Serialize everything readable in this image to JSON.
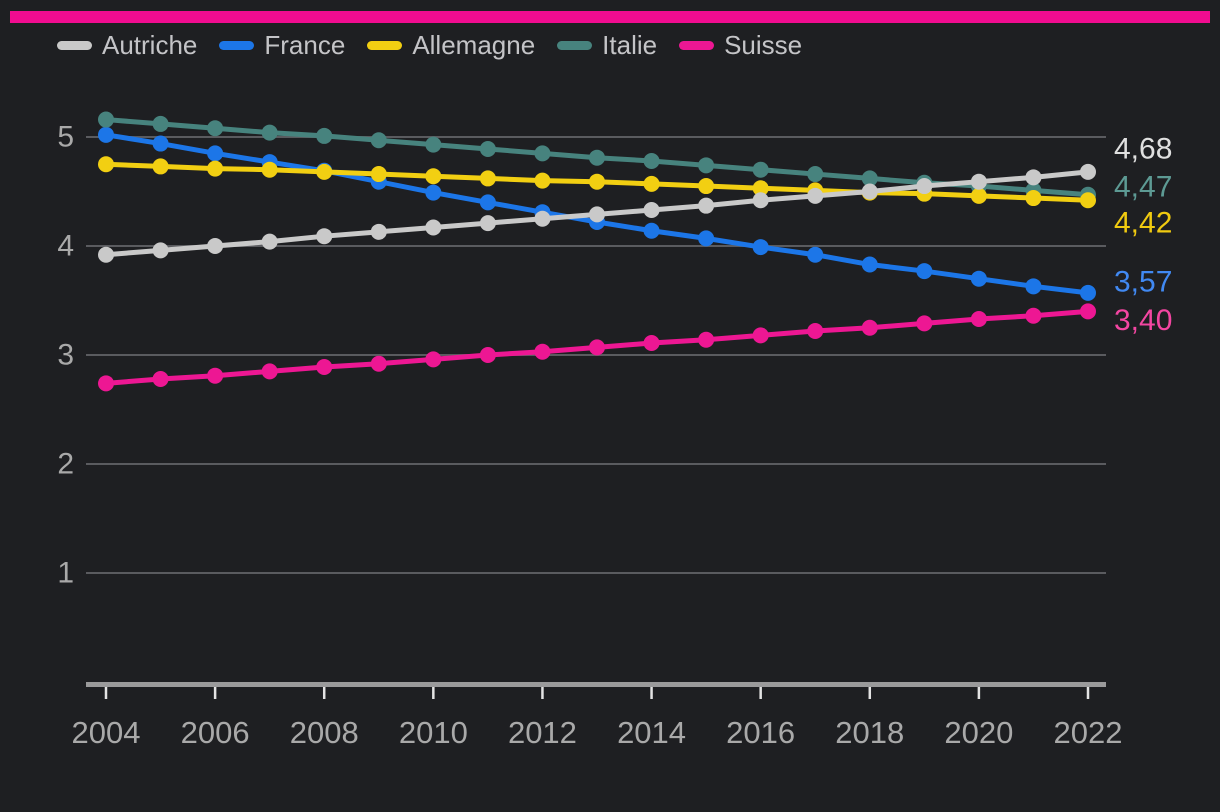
{
  "page": {
    "background": "#1e1f22"
  },
  "top_bar": {
    "color": "#f10c90"
  },
  "legend": {
    "text_color": "#c4c4c7"
  },
  "chart_data": {
    "type": "line",
    "title": "",
    "x": [
      2004,
      2005,
      2006,
      2007,
      2008,
      2009,
      2010,
      2011,
      2012,
      2013,
      2014,
      2015,
      2016,
      2017,
      2018,
      2019,
      2020,
      2021,
      2022
    ],
    "x_tick_labels": [
      "2004",
      "2006",
      "2008",
      "2010",
      "2012",
      "2014",
      "2016",
      "2018",
      "2020",
      "2022"
    ],
    "yticks": [
      1,
      2,
      3,
      4,
      5
    ],
    "ylim": [
      0,
      5.4
    ],
    "grid": true,
    "legend_position": "top-left",
    "decimal_separator": ",",
    "axis_colors": {
      "gridline": "#5a5b5f",
      "axis_line": "#9a9a9b",
      "tick": "#e3e3e3",
      "tick_label": "#a9a9a9"
    },
    "series": [
      {
        "name": "Autriche",
        "color": "#c9c9c9",
        "end_label": "4,68",
        "end_label_color": "#e0e0e0",
        "values": [
          3.92,
          3.96,
          4.0,
          4.04,
          4.09,
          4.13,
          4.17,
          4.21,
          4.25,
          4.29,
          4.33,
          4.37,
          4.42,
          4.46,
          4.5,
          4.55,
          4.59,
          4.63,
          4.68
        ]
      },
      {
        "name": "France",
        "color": "#1c76e8",
        "end_label": "3,57",
        "end_label_color": "#4189f2",
        "values": [
          5.02,
          4.94,
          4.85,
          4.77,
          4.69,
          4.59,
          4.49,
          4.4,
          4.31,
          4.22,
          4.14,
          4.07,
          3.99,
          3.92,
          3.83,
          3.77,
          3.7,
          3.63,
          3.57
        ]
      },
      {
        "name": "Allemagne",
        "color": "#f2cf12",
        "end_label": "4,42",
        "end_label_color": "#f0ca10",
        "values": [
          4.75,
          4.73,
          4.71,
          4.7,
          4.68,
          4.66,
          4.64,
          4.62,
          4.6,
          4.59,
          4.57,
          4.55,
          4.53,
          4.51,
          4.49,
          4.48,
          4.46,
          4.44,
          4.42
        ]
      },
      {
        "name": "Italie",
        "color": "#47837e",
        "end_label": "4,47",
        "end_label_color": "#5d9a94",
        "values": [
          5.16,
          5.12,
          5.08,
          5.04,
          5.01,
          4.97,
          4.93,
          4.89,
          4.85,
          4.81,
          4.78,
          4.74,
          4.7,
          4.66,
          4.62,
          4.58,
          4.55,
          4.51,
          4.47
        ]
      },
      {
        "name": "Suisse",
        "color": "#ed1793",
        "end_label": "3,40",
        "end_label_color": "#f446a2",
        "values": [
          2.74,
          2.78,
          2.81,
          2.85,
          2.89,
          2.92,
          2.96,
          3.0,
          3.03,
          3.07,
          3.11,
          3.14,
          3.18,
          3.22,
          3.25,
          3.29,
          3.33,
          3.36,
          3.4
        ]
      }
    ]
  }
}
